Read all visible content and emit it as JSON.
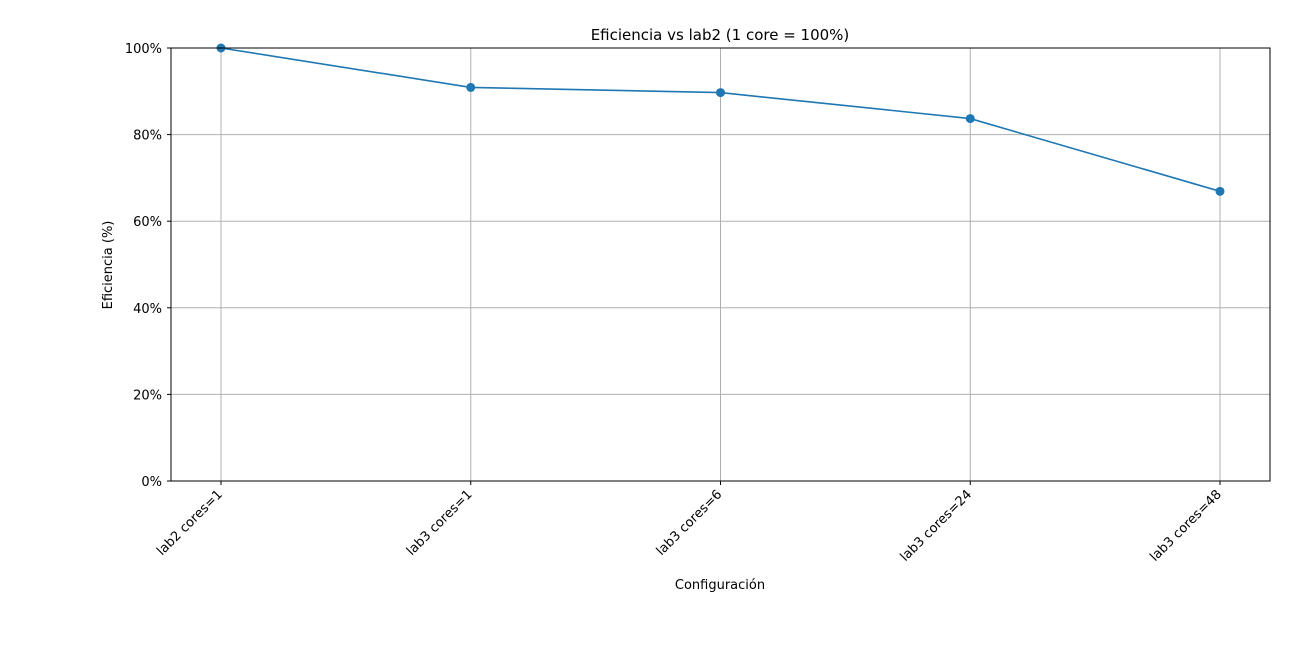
{
  "chart_data": {
    "type": "line",
    "title": "Eficiencia vs lab2 (1 core = 100%)",
    "xlabel": "Configuración",
    "ylabel": "Eficiencia (%)",
    "categories": [
      "lab2 cores=1",
      "lab3 cores=1",
      "lab3 cores=6",
      "lab3 cores=24",
      "lab3 cores=48"
    ],
    "series": [
      {
        "values": [
          100,
          90.9,
          89.7,
          83.7,
          66.9
        ],
        "color": "#1f77b4"
      }
    ],
    "ylim": [
      0,
      100
    ],
    "yticks": [
      0,
      20,
      40,
      60,
      80,
      100
    ],
    "ytick_labels": [
      "0%",
      "20%",
      "40%",
      "60%",
      "80%",
      "100%"
    ],
    "grid": true,
    "legend": "none"
  }
}
